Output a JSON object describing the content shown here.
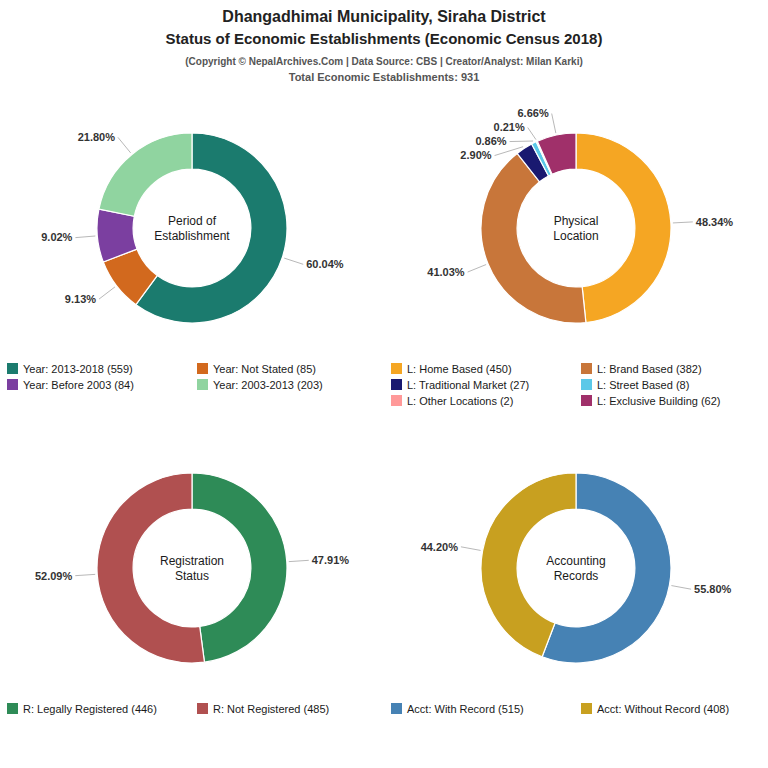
{
  "title": [
    "Dhangadhimai Municipality, Siraha District",
    "Status of Economic Establishments (Economic Census 2018)"
  ],
  "subtitle": [
    "(Copyright © NepalArchives.Com | Data Source: CBS | Creator/Analyst: Milan Karki)",
    "Total Economic Establishments: 931"
  ],
  "chart_data": [
    {
      "type": "pie",
      "title": "Period of\nEstablishment",
      "categories": [
        "Year: 2013-2018 (559)",
        "Year: Not Stated (85)",
        "Year: Before 2003 (84)",
        "Year: 2003-2013 (203)"
      ],
      "values": [
        60.04,
        9.13,
        9.02,
        21.8
      ],
      "value_labels": [
        "60.04%",
        "9.13%",
        "9.02%",
        "21.80%"
      ],
      "colors": [
        "#1B7B6E",
        "#D2691E",
        "#7B3FA0",
        "#90D4A0"
      ],
      "data_labels": true,
      "legend": "bottom"
    },
    {
      "type": "pie",
      "title": "Physical\nLocation",
      "categories": [
        "L: Home Based (450)",
        "L: Brand Based (382)",
        "L: Traditional Market (27)",
        "L: Street Based (8)",
        "L: Other Locations (2)",
        "L: Exclusive Building (62)"
      ],
      "values": [
        48.34,
        41.03,
        2.9,
        0.86,
        0.21,
        6.66
      ],
      "value_labels": [
        "48.34%",
        "41.03%",
        "2.90%",
        "0.86%",
        "0.21%",
        "6.66%"
      ],
      "colors": [
        "#F5A623",
        "#C8763A",
        "#191970",
        "#5BC8E8",
        "#FF9999",
        "#A0306A"
      ],
      "data_labels": true,
      "legend": "bottom"
    },
    {
      "type": "pie",
      "title": "Registration\nStatus",
      "categories": [
        "R: Legally Registered (446)",
        "R: Not Registered (485)"
      ],
      "values": [
        47.91,
        52.09
      ],
      "value_labels": [
        "47.91%",
        "52.09%"
      ],
      "colors": [
        "#2E8B57",
        "#B05050"
      ],
      "data_labels": true,
      "legend": "bottom"
    },
    {
      "type": "pie",
      "title": "Accounting\nRecords",
      "categories": [
        "Acct: With Record (515)",
        "Acct: Without Record (408)"
      ],
      "values": [
        55.8,
        44.2
      ],
      "value_labels": [
        "55.80%",
        "44.20%"
      ],
      "colors": [
        "#4682B4",
        "#C8A020"
      ],
      "data_labels": true,
      "legend": "bottom"
    }
  ]
}
